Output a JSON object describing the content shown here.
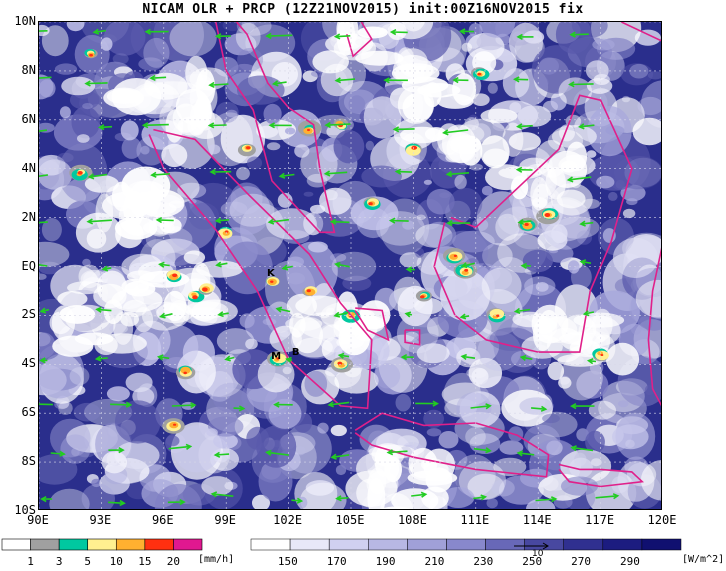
{
  "title": "NICAM OLR + PRCP (12Z21NOV2015) init:00Z16NOV2015 fix",
  "map": {
    "lon_range": [
      90,
      120
    ],
    "lat_range": [
      -10,
      10
    ],
    "lat_labels": [
      "10N",
      "8N",
      "6N",
      "4N",
      "2N",
      "EQ",
      "2S",
      "4S",
      "6S",
      "8S",
      "10S"
    ],
    "lon_labels": [
      "90E",
      "93E",
      "96E",
      "99E",
      "102E",
      "105E",
      "108E",
      "111E",
      "114E",
      "117E",
      "120E"
    ],
    "markers": [
      {
        "label": "K",
        "lon": 101.2,
        "lat": -0.4
      },
      {
        "label": "M",
        "lon": 101.4,
        "lat": -3.8
      },
      {
        "label": "B",
        "lon": 102.4,
        "lat": -3.6
      }
    ],
    "colors": {
      "ocean_base": "#2a2e8c",
      "cloud": "#ffffff",
      "coast": "#e0208a",
      "wind_arrow": "#22cc22"
    }
  },
  "precip_colorbar": {
    "labels": [
      "1",
      "3",
      "5",
      "10",
      "15",
      "20"
    ],
    "unit": "[mm/h]",
    "colors": [
      "#ffffff",
      "#a0a0a0",
      "#00c8a0",
      "#fff090",
      "#ffb030",
      "#ff3010",
      "#e01890"
    ]
  },
  "olr_colorbar": {
    "labels": [
      "150",
      "170",
      "190",
      "210",
      "230",
      "250",
      "270",
      "290"
    ],
    "unit": "[W/m^2]",
    "colors": [
      "#ffffff",
      "#e8e8f8",
      "#d0d0f0",
      "#b8b8e4",
      "#a0a0d8",
      "#8888cc",
      "#6868b8",
      "#4848a0",
      "#303090",
      "#1c1c80",
      "#101070"
    ]
  },
  "vector_ref": {
    "value": "10"
  }
}
